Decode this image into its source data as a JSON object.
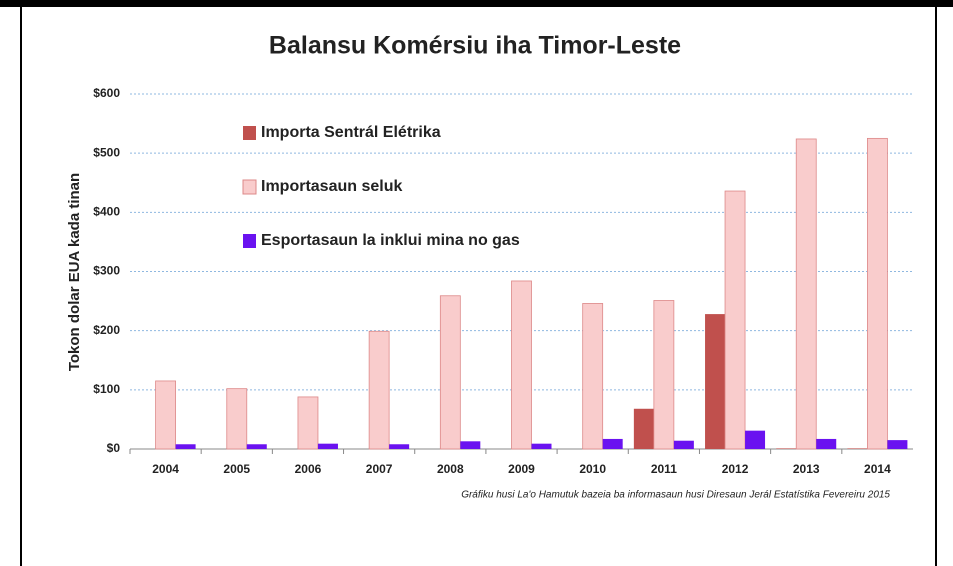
{
  "chart_data": {
    "type": "bar",
    "title": "Balansu Komérsiu iha Timor-Leste",
    "ylabel": "Tokon dolar EUA kada tinan",
    "note": "Gráfiku husi La'o Hamutuk bazeia ba informasaun husi Diresaun Jerál Estatístika   Fevereiru 2015",
    "categories": [
      "2004",
      "2005",
      "2006",
      "2007",
      "2008",
      "2009",
      "2010",
      "2011",
      "2012",
      "2013",
      "2014"
    ],
    "series": [
      {
        "name": "Importa Sentrál Elétrika",
        "color": "#c0504d",
        "values": [
          0,
          0,
          0,
          0,
          0,
          0,
          0,
          68,
          228,
          1,
          1
        ]
      },
      {
        "name": "Importasaun seluk",
        "color": "#f9cccc",
        "values": [
          115,
          102,
          88,
          199,
          259,
          284,
          246,
          251,
          436,
          524,
          525
        ]
      },
      {
        "name": "Esportasaun la inklui mina no gas",
        "color": "#6a12f0",
        "values": [
          8,
          8,
          9,
          8,
          13,
          9,
          17,
          14,
          31,
          17,
          15
        ]
      }
    ],
    "ylim": [
      0,
      600
    ],
    "yticks": [
      {
        "value": 0,
        "label": "$0"
      },
      {
        "value": 100,
        "label": "$100"
      },
      {
        "value": 200,
        "label": "$200"
      },
      {
        "value": 300,
        "label": "$300"
      },
      {
        "value": 400,
        "label": "$400"
      },
      {
        "value": 500,
        "label": "$500"
      },
      {
        "value": 600,
        "label": "$600"
      }
    ],
    "grid": true
  }
}
